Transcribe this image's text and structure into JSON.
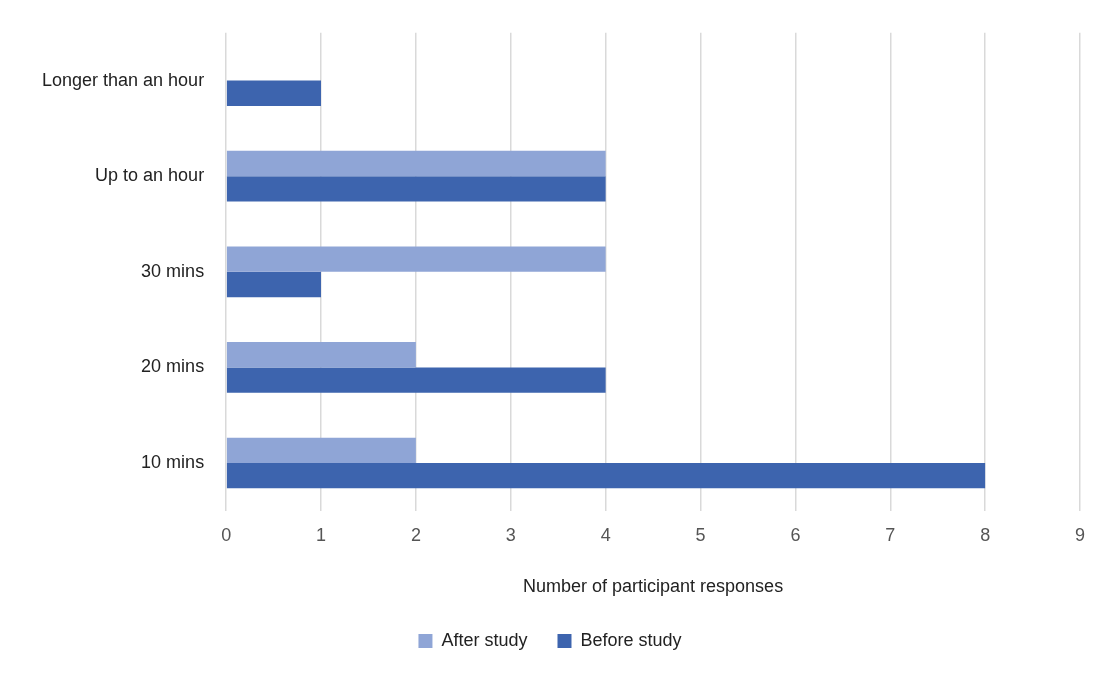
{
  "chart_data": {
    "type": "bar",
    "orientation": "horizontal",
    "categories": [
      "Longer than an hour",
      "Up to an hour",
      "30 mins",
      "20 mins",
      "10 mins"
    ],
    "series": [
      {
        "name": "After study",
        "color": "#8fa5d6",
        "values": [
          0,
          4,
          4,
          2,
          2
        ]
      },
      {
        "name": "Before study",
        "color": "#3d64ae",
        "values": [
          1,
          4,
          1,
          4,
          8
        ]
      }
    ],
    "xlim": [
      0,
      9
    ],
    "xticks": [
      0,
      1,
      2,
      3,
      4,
      5,
      6,
      7,
      8,
      9
    ],
    "xlabel": "Number of participant responses",
    "grid": "x",
    "legend": "bottom"
  }
}
